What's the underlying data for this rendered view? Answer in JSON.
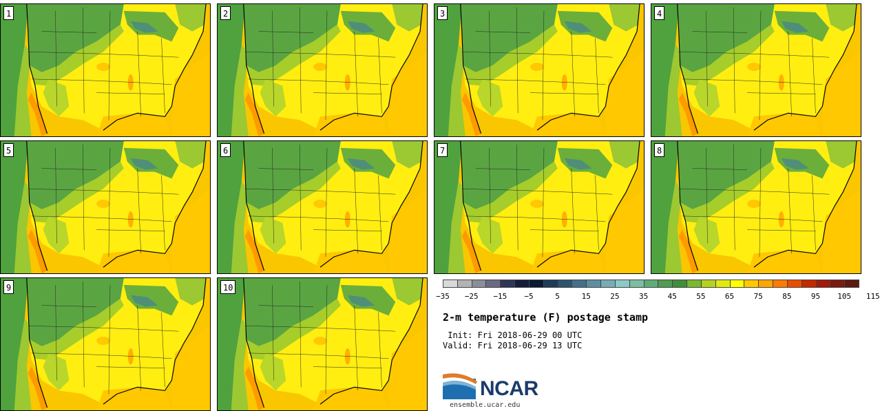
{
  "panels": [
    {
      "label": "1"
    },
    {
      "label": "2"
    },
    {
      "label": "3"
    },
    {
      "label": "4"
    },
    {
      "label": "5"
    },
    {
      "label": "6"
    },
    {
      "label": "7"
    },
    {
      "label": "8"
    },
    {
      "label": "9"
    },
    {
      "label": "10"
    }
  ],
  "colorbar": {
    "colors": [
      "#d9d9d9",
      "#b3b3b3",
      "#8c8c9c",
      "#6a6a80",
      "#2f3558",
      "#141c3a",
      "#0a1a33",
      "#1f3b5a",
      "#2f5470",
      "#44708a",
      "#5e8ea0",
      "#78abb6",
      "#8dc9c9",
      "#7bbfa0",
      "#5fac78",
      "#4f9c52",
      "#3f8f3a",
      "#79b830",
      "#b5d31c",
      "#e0ea10",
      "#ffff00",
      "#ffc800",
      "#ffa500",
      "#ff7b00",
      "#e84e00",
      "#c42a00",
      "#a31a0a",
      "#7a1a10",
      "#5c1a12"
    ],
    "ticks": [
      "−35",
      "−25",
      "−15",
      "−5",
      "5",
      "15",
      "25",
      "35",
      "45",
      "55",
      "65",
      "75",
      "85",
      "95",
      "105",
      "115"
    ]
  },
  "title": "2-m temperature (F) postage stamp",
  "init": " Init: Fri 2018-06-29 00 UTC",
  "valid": "Valid: Fri 2018-06-29 13 UTC",
  "logo": {
    "text": "NCAR",
    "site": "ensemble.ucar.edu"
  }
}
